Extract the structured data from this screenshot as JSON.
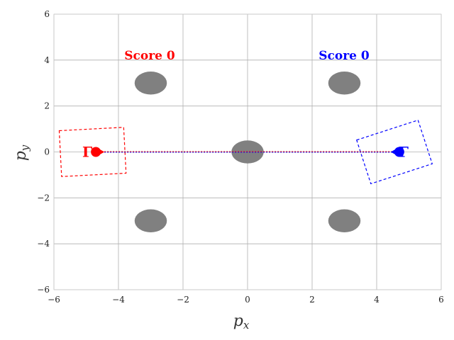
{
  "axes": {
    "xlabel": "p_x",
    "ylabel": "p_y",
    "xlim": [
      -6,
      6
    ],
    "ylim": [
      -6,
      6
    ],
    "xticks": [
      "−6",
      "−4",
      "−2",
      "0",
      "2",
      "4",
      "6"
    ],
    "yticks": [
      "−6",
      "−4",
      "−2",
      "0",
      "2",
      "4",
      "6"
    ],
    "grid": true
  },
  "scores": {
    "red": "Score 0",
    "blue": "Score 0"
  },
  "colors": {
    "red": "#ff0000",
    "blue": "#0000ff",
    "obstacle": "#808080",
    "grid": "#b0b0b0"
  },
  "obstacles": [
    {
      "x": -3,
      "y": 3
    },
    {
      "x": 3,
      "y": 3
    },
    {
      "x": 0,
      "y": 0
    },
    {
      "x": -3,
      "y": -3
    },
    {
      "x": 3,
      "y": -3
    }
  ],
  "agents": {
    "red": {
      "x": -4.7,
      "y": 0.0,
      "heading_deg": 0,
      "letter": "Γ"
    },
    "blue": {
      "x": 4.7,
      "y": 0.0,
      "heading_deg": 180,
      "letter": "Γ"
    }
  },
  "fov_boxes": {
    "red": {
      "cx": -4.8,
      "cy": 0.0,
      "w": 2.0,
      "h": 2.0,
      "angle_deg": 3
    },
    "blue": {
      "cx": 4.55,
      "cy": 0.0,
      "w": 2.0,
      "h": 2.0,
      "angle_deg": 18
    }
  }
}
